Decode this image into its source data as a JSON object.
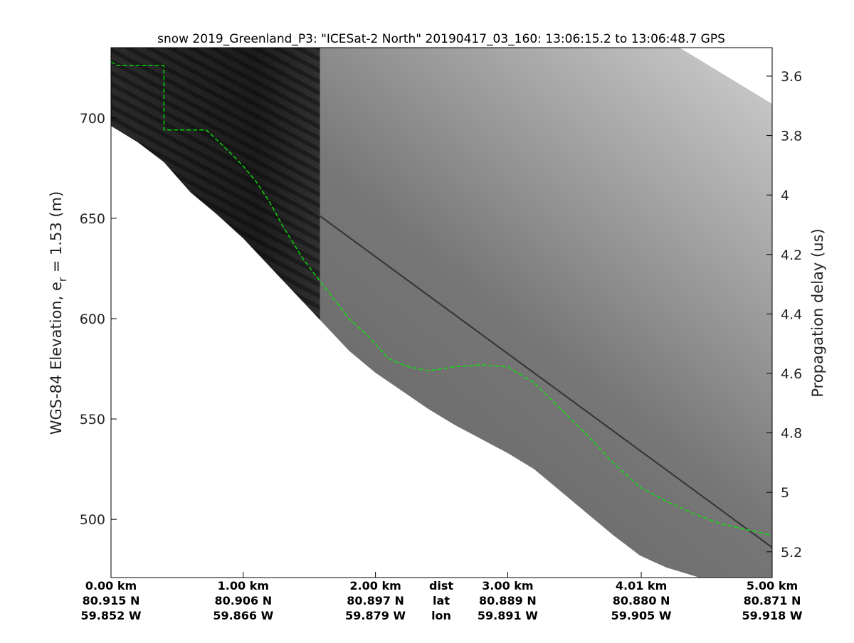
{
  "chart_data": {
    "type": "heatmap",
    "title": "snow 2019_Greenland_P3: \"ICESat-2 North\"  20190417_03_160: 13:06:15.2 to 13:06:48.7 GPS",
    "ylabel": "WGS-84 Elevation, e",
    "ylabel_sub": "r",
    "ylabel_suffix": " = 1.53 (m)",
    "y2label": "Propagation delay (us)",
    "colormap": "grayscale",
    "ylim": [
      471,
      735
    ],
    "y_ticks": [
      500,
      550,
      600,
      650,
      700
    ],
    "y2_ticks": [
      "3.6",
      "3.8",
      "4",
      "4.2",
      "4.4",
      "4.6",
      "4.8",
      "5",
      "5.2"
    ],
    "x_axis_rows": [
      "dist",
      "lat",
      "lon"
    ],
    "x_ticks": [
      {
        "dist": "0.00 km",
        "lat": "80.915 N",
        "lon": "59.852 W",
        "km": 0.0
      },
      {
        "dist": "1.00 km",
        "lat": "80.906 N",
        "lon": "59.866 W",
        "km": 1.0
      },
      {
        "dist": "2.00 km",
        "lat": "80.897 N",
        "lon": "59.879 W",
        "km": 2.0
      },
      {
        "dist": "3.00 km",
        "lat": "80.889 N",
        "lon": "59.891 W",
        "km": 3.0
      },
      {
        "dist": "4.01 km",
        "lat": "80.880 N",
        "lon": "59.905 W",
        "km": 4.01
      },
      {
        "dist": "5.00 km",
        "lat": "80.871 N",
        "lon": "59.918 W",
        "km": 5.0
      }
    ],
    "series": [
      {
        "style": "dashed",
        "color": "#00ee00",
        "x": [
          0.0,
          0.05,
          0.4,
          0.4,
          0.72,
          0.85,
          1.0,
          1.1,
          1.2,
          1.3,
          1.45,
          1.6,
          1.8,
          1.95,
          2.1,
          2.25,
          2.4,
          2.6,
          2.8,
          3.0,
          3.2,
          3.4,
          3.6,
          3.8,
          4.0,
          4.2,
          4.4,
          4.6,
          4.8,
          5.0
        ],
        "y": [
          728,
          726,
          726,
          694,
          694,
          686,
          676,
          668,
          658,
          646,
          630,
          617,
          600,
          591,
          580,
          576,
          574,
          576,
          577,
          576,
          568,
          555,
          542,
          528,
          516,
          509,
          503,
          498,
          495,
          492
        ]
      }
    ],
    "layers": {
      "data_top_edge_y_at_x": {
        "x": [
          0,
          4.3,
          5.0
        ],
        "y": [
          735,
          735,
          707
        ]
      },
      "surface_bottom_edge_y_at_x": {
        "x": [
          0.0,
          0.2,
          0.4,
          0.6,
          0.8,
          1.0,
          1.2,
          1.4,
          1.6,
          1.8,
          2.0,
          2.2,
          2.4,
          2.6,
          2.8,
          3.0,
          3.2,
          3.4,
          3.6,
          3.8,
          4.0,
          4.2,
          4.45
        ],
        "y": [
          696,
          688,
          678,
          663,
          652,
          640,
          626,
          612,
          598,
          584,
          573,
          564,
          555,
          547,
          540,
          533,
          525,
          514,
          503,
          492,
          482,
          476,
          471
        ]
      },
      "internal_reflector_y_at_x": {
        "x": [
          1.5,
          5.0
        ],
        "y": [
          655,
          486
        ]
      },
      "dark_region_end_km": 1.58
    }
  }
}
